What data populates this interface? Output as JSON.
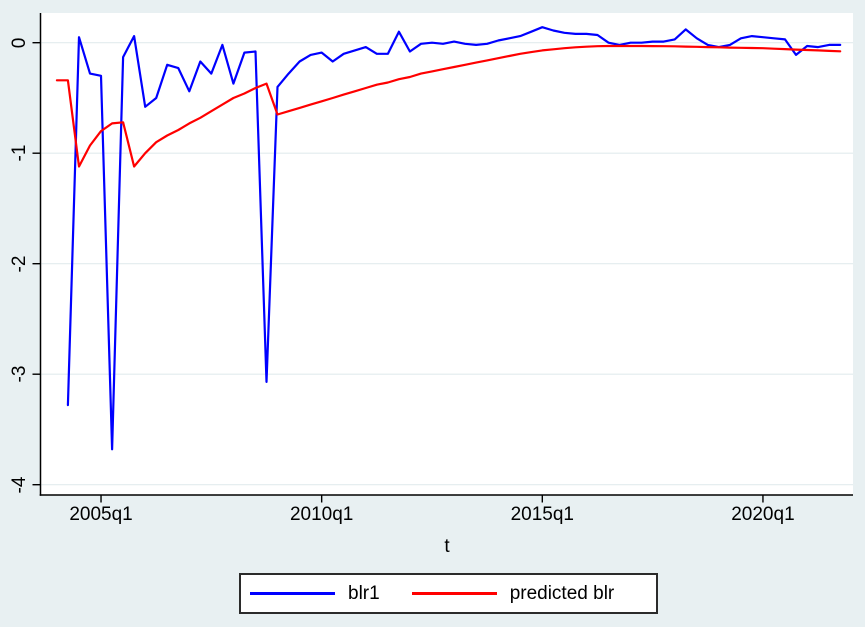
{
  "colors": {
    "background": "#e8f0f2",
    "plot_background": "#ffffff",
    "gridline": "#e2ebee",
    "axis": "#000000",
    "series_blr1": "#0000ff",
    "series_predicted": "#ff0000"
  },
  "chart_data": {
    "type": "line",
    "title": "",
    "xlabel": "t",
    "ylabel": "",
    "grid": true,
    "legend_position": "bottom",
    "ylim": [
      -4.15,
      0.27
    ],
    "y_tick_labels": [
      "0",
      "-1",
      "-2",
      "-3",
      "-4"
    ],
    "y_tick_values": [
      0,
      -1,
      -2,
      -3,
      -4
    ],
    "x_tick_labels": [
      "2005q1",
      "2010q1",
      "2015q1",
      "2020q1"
    ],
    "x_tick_indices": [
      4,
      24,
      44,
      64
    ],
    "x": [
      "2004q1",
      "2004q2",
      "2004q3",
      "2004q4",
      "2005q1",
      "2005q2",
      "2005q3",
      "2005q4",
      "2006q1",
      "2006q2",
      "2006q3",
      "2006q4",
      "2007q1",
      "2007q2",
      "2007q3",
      "2007q4",
      "2008q1",
      "2008q2",
      "2008q3",
      "2008q4",
      "2009q1",
      "2009q2",
      "2009q3",
      "2009q4",
      "2010q1",
      "2010q2",
      "2010q3",
      "2010q4",
      "2011q1",
      "2011q2",
      "2011q3",
      "2011q4",
      "2012q1",
      "2012q2",
      "2012q3",
      "2012q4",
      "2013q1",
      "2013q2",
      "2013q3",
      "2013q4",
      "2014q1",
      "2014q2",
      "2014q3",
      "2014q4",
      "2015q1",
      "2015q2",
      "2015q3",
      "2015q4",
      "2016q1",
      "2016q2",
      "2016q3",
      "2016q4",
      "2017q1",
      "2017q2",
      "2017q3",
      "2017q4",
      "2018q1",
      "2018q2",
      "2018q3",
      "2018q4",
      "2019q1",
      "2019q2",
      "2019q3",
      "2019q4",
      "2020q1",
      "2020q2",
      "2020q3",
      "2020q4",
      "2021q1",
      "2021q2",
      "2021q3",
      "2021q4"
    ],
    "series": [
      {
        "name": "blr1",
        "color": "#0000ff",
        "values": [
          null,
          -3.28,
          0.05,
          -0.28,
          -0.3,
          -3.68,
          -0.13,
          0.06,
          -0.58,
          -0.5,
          -0.2,
          -0.23,
          -0.44,
          -0.17,
          -0.28,
          -0.02,
          -0.37,
          -0.09,
          -0.08,
          -3.07,
          -0.4,
          -0.28,
          -0.17,
          -0.11,
          -0.09,
          -0.17,
          -0.1,
          -0.07,
          -0.04,
          -0.1,
          -0.1,
          0.1,
          -0.08,
          -0.01,
          0,
          -0.01,
          0.01,
          -0.01,
          -0.02,
          -0.01,
          0.02,
          0.04,
          0.06,
          0.1,
          0.14,
          0.11,
          0.09,
          0.08,
          0.08,
          0.07,
          0,
          -0.02,
          0,
          0,
          0.01,
          0.01,
          0.03,
          0.12,
          0.04,
          -0.02,
          -0.04,
          -0.02,
          0.04,
          0.06,
          0.05,
          0.04,
          0.03,
          -0.11,
          -0.03,
          -0.04,
          -0.02,
          -0.02
        ]
      },
      {
        "name": "predicted blr",
        "color": "#ff0000",
        "values": [
          -0.34,
          -0.34,
          -1.12,
          -0.93,
          -0.8,
          -0.73,
          -0.72,
          -1.12,
          -1,
          -0.9,
          -0.84,
          -0.79,
          -0.73,
          -0.68,
          -0.62,
          -0.56,
          -0.5,
          -0.46,
          -0.41,
          -0.37,
          -0.65,
          -0.62,
          -0.59,
          -0.56,
          -0.53,
          -0.5,
          -0.47,
          -0.44,
          -0.41,
          -0.38,
          -0.36,
          -0.33,
          -0.31,
          -0.28,
          -0.26,
          -0.24,
          -0.22,
          -0.2,
          -0.18,
          -0.16,
          -0.14,
          -0.12,
          -0.1,
          -0.085,
          -0.07,
          -0.06,
          -0.05,
          -0.042,
          -0.036,
          -0.032,
          -0.03,
          -0.03,
          -0.03,
          -0.03,
          -0.031,
          -0.032,
          -0.033,
          -0.035,
          -0.037,
          -0.04,
          -0.042,
          -0.044,
          -0.046,
          -0.048,
          -0.05,
          -0.054,
          -0.058,
          -0.062,
          -0.066,
          -0.07,
          -0.074,
          -0.078
        ]
      }
    ]
  },
  "legend": {
    "entry_blr1": "blr1",
    "entry_predicted": "predicted blr"
  }
}
